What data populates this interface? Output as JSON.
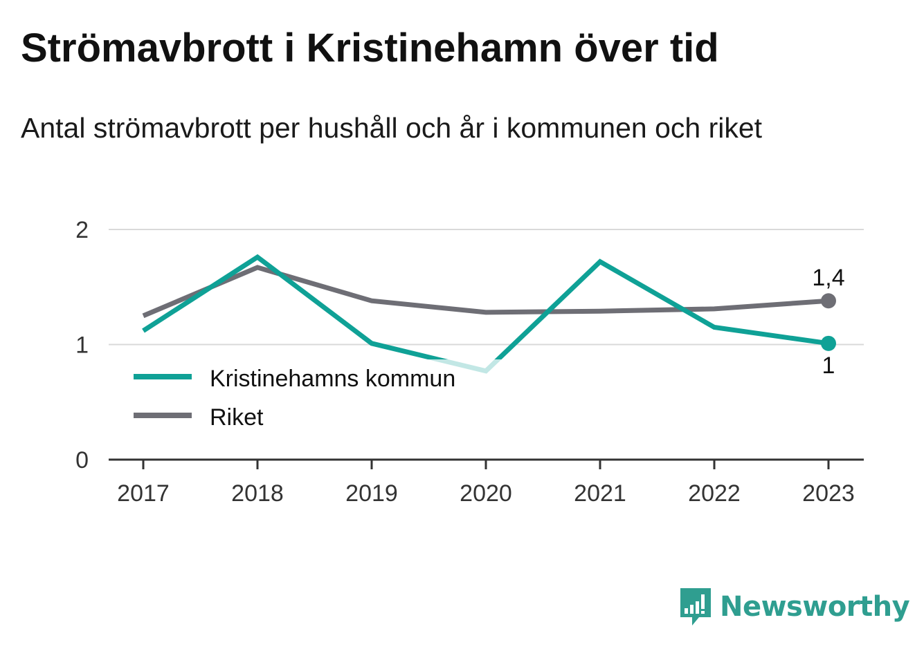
{
  "title": "Strömavbrott i Kristinehamn över tid",
  "subtitle": "Antal strömavbrott per hushåll och år i kommunen och riket",
  "brand": {
    "name": "Newsworthy",
    "color": "#2f9e90",
    "icon": "bar-chart-speech-bubble-icon"
  },
  "chart_data": {
    "type": "line",
    "x": [
      "2017",
      "2018",
      "2019",
      "2020",
      "2021",
      "2022",
      "2023"
    ],
    "ylim": [
      0,
      2
    ],
    "yticks": [
      "0",
      "1",
      "2"
    ],
    "grid": true,
    "legend_position": "bottom-left",
    "series": [
      {
        "name": "Kristinehamns kommun",
        "color": "#0fa196",
        "values": [
          1.12,
          1.76,
          1.01,
          0.77,
          1.72,
          1.15,
          1.01
        ],
        "end_label": "1"
      },
      {
        "name": "Riket",
        "color": "#6e6e75",
        "values": [
          1.25,
          1.67,
          1.38,
          1.28,
          1.29,
          1.31,
          1.38
        ],
        "end_label": "1,4"
      }
    ]
  }
}
